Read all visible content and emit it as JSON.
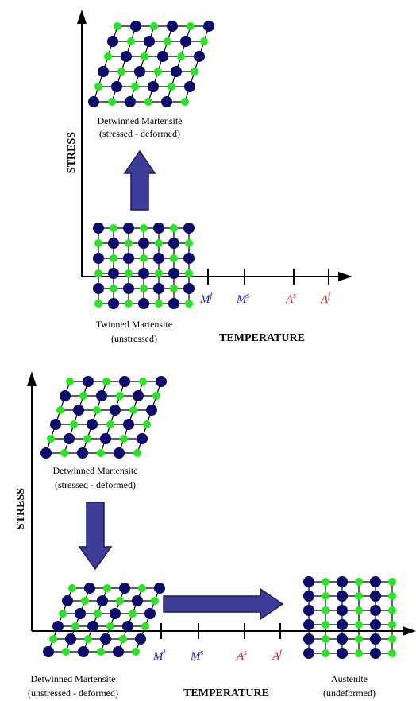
{
  "colors": {
    "atom_dark": "#0b0b70",
    "atom_light": "#22e81e",
    "arrow_fill": "#3d3d99",
    "arrow_stroke": "#1a1a66",
    "axis": "#000000",
    "martensite_tick": "#1a1acc",
    "austenite_tick": "#e61a1a"
  },
  "icons": {
    "atom_dark": "dark-blue-circle",
    "atom_light": "green-circle",
    "process_arrow": "block-arrow"
  },
  "panel_top": {
    "y_axis_label": "STRESS",
    "x_axis_label": "TEMPERATURE",
    "upper_caption": [
      "Detwinned Martensite",
      "(stressed - deformed)"
    ],
    "lower_caption": [
      "Twinned Martensite",
      "(unstressed)"
    ],
    "ticks": [
      {
        "base": "M",
        "sup": "f",
        "color": "#1a1acc"
      },
      {
        "base": "M",
        "sup": "s",
        "color": "#1a1acc"
      },
      {
        "base": "A",
        "sup": "s",
        "color": "#e61a1a"
      },
      {
        "base": "A",
        "sup": "f",
        "color": "#e61a1a"
      }
    ]
  },
  "panel_bottom": {
    "y_axis_label": "STRESS",
    "x_axis_label": "TEMPERATURE",
    "upper_caption": [
      "Detwinned Martensite",
      "(stressed - deformed)"
    ],
    "lower_caption": [
      "Detwinned Martensite",
      "(unstressed - deformed)"
    ],
    "right_caption": [
      "Austenite",
      "(undeformed)"
    ],
    "ticks": [
      {
        "base": "M",
        "sup": "f",
        "color": "#1a1acc"
      },
      {
        "base": "M",
        "sup": "s",
        "color": "#1a1acc"
      },
      {
        "base": "A",
        "sup": "s",
        "color": "#e61a1a"
      },
      {
        "base": "A",
        "sup": "f",
        "color": "#e61a1a"
      }
    ]
  }
}
